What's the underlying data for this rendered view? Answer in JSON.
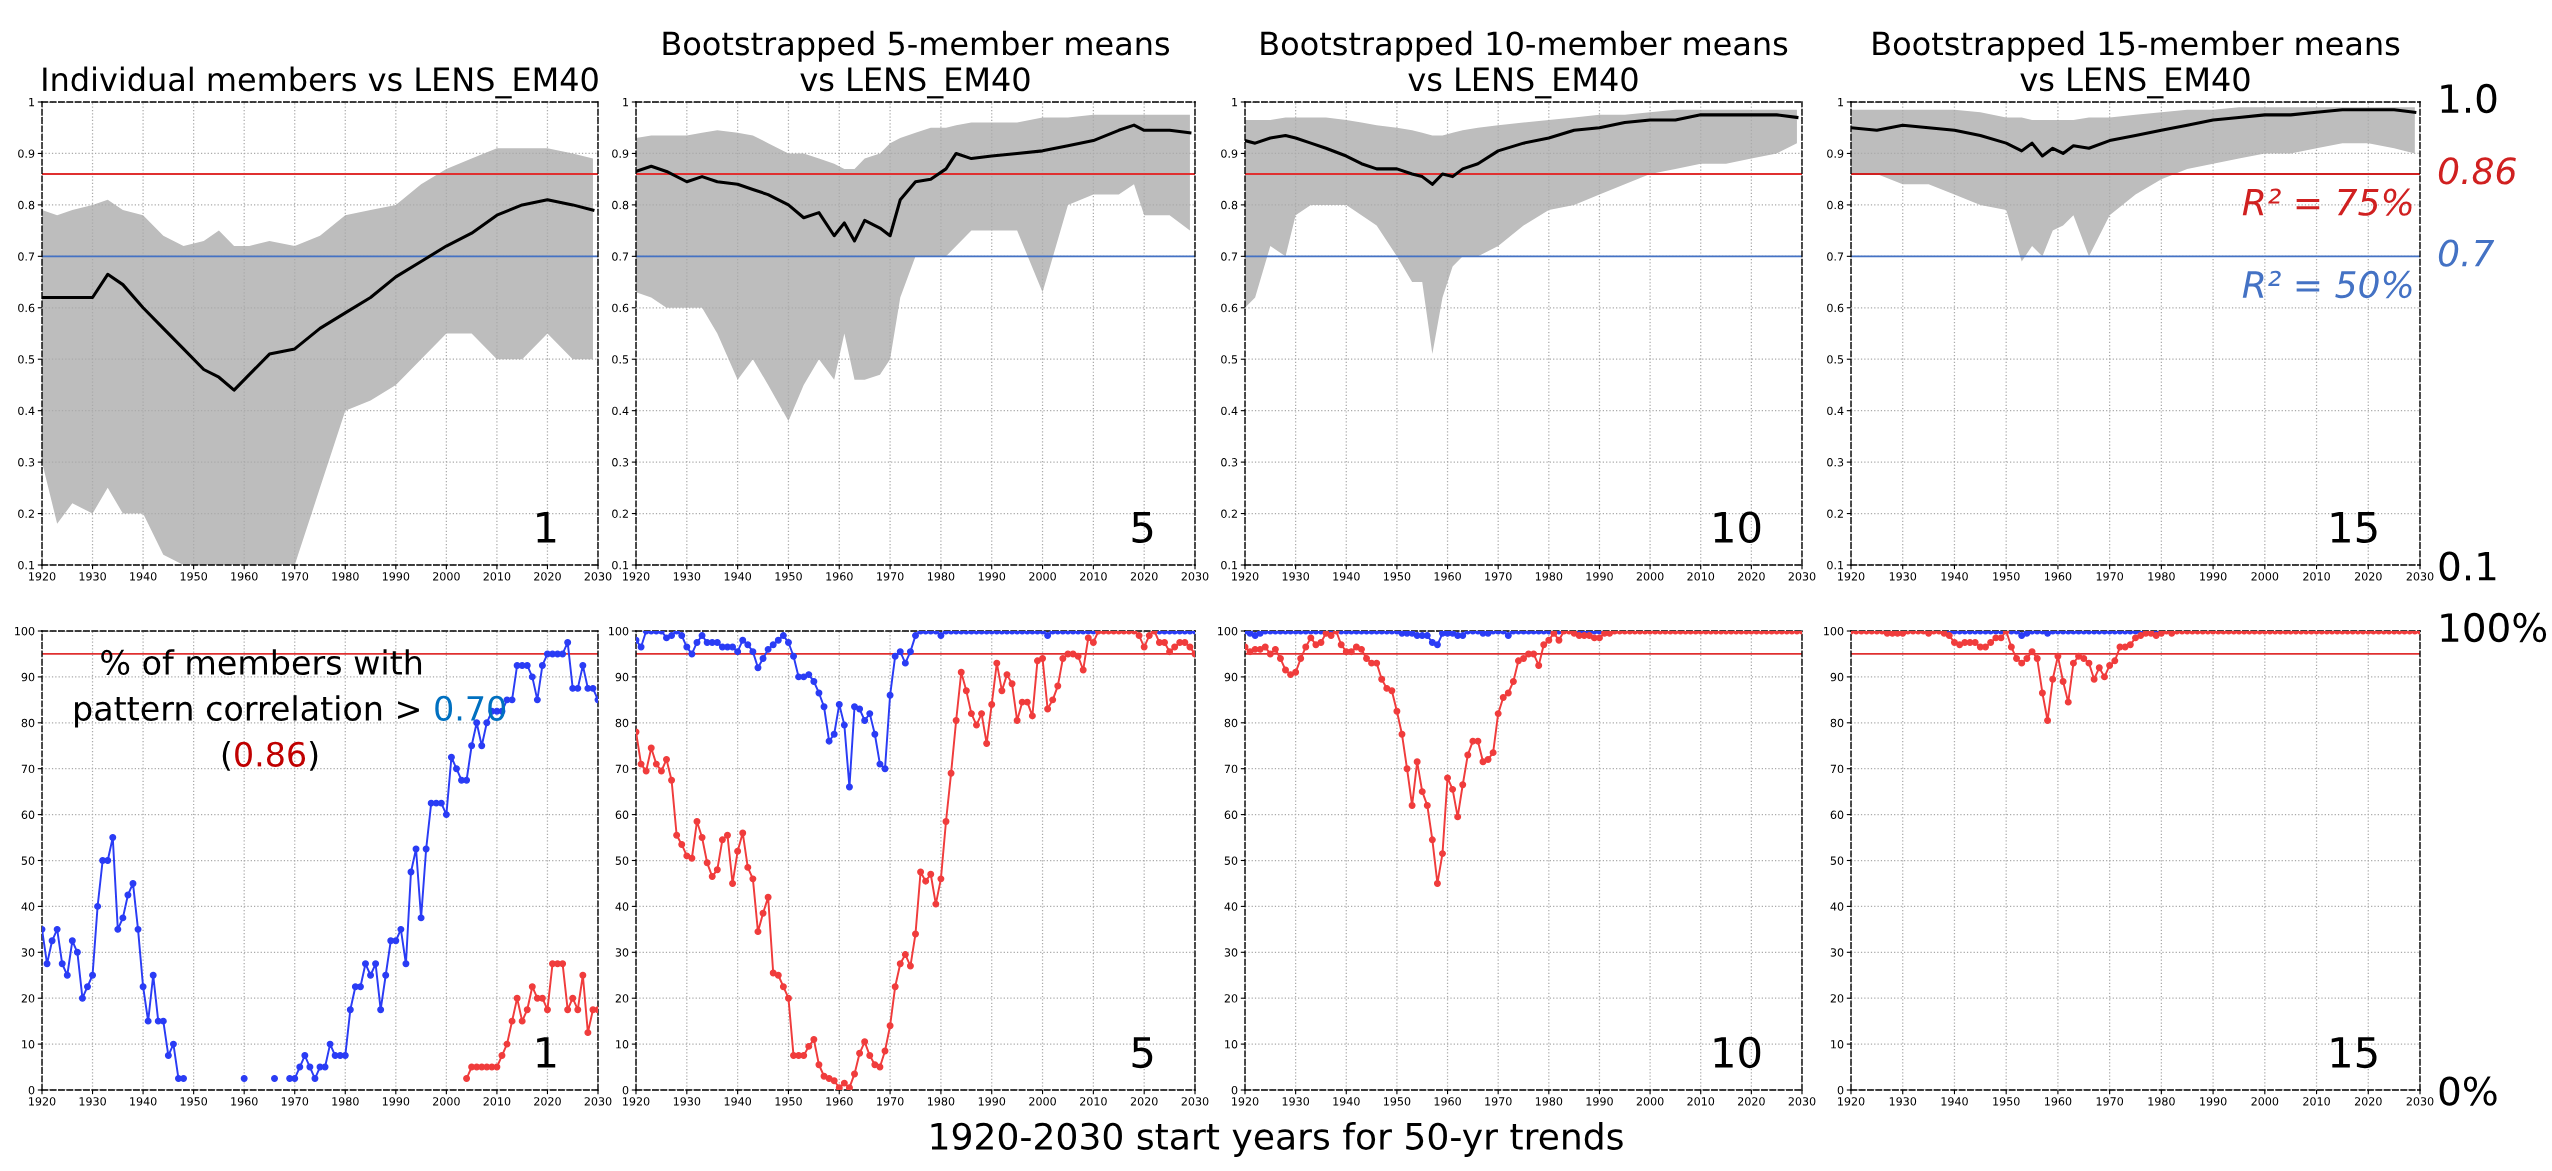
{
  "chart_data": [
    {
      "type": "line",
      "title": "Individual members vs LENS_EM40",
      "xlim": [
        1920,
        2030
      ],
      "xticks": [
        1920,
        1930,
        1940,
        1950,
        1960,
        1970,
        1980,
        1990,
        2000,
        2010,
        2020,
        2030
      ],
      "ylim": [
        0.1,
        1
      ],
      "yticks": [
        0.1,
        0.2,
        0.3,
        0.4,
        0.5,
        0.6,
        0.7,
        0.8,
        0.9,
        1
      ],
      "grid": true,
      "ref_lines": [
        {
          "axis": "y",
          "value": 0.86,
          "color": "#e03030"
        },
        {
          "axis": "y",
          "value": 0.7,
          "color": "#4472c4"
        }
      ],
      "series": [
        {
          "color": "#000000",
          "x": [
            1920,
            1923,
            1926,
            1930,
            1933,
            1936,
            1940,
            1944,
            1948,
            1952,
            1955,
            1958,
            1961,
            1965,
            1970,
            1975,
            1980,
            1985,
            1990,
            1995,
            2000,
            2005,
            2010,
            2015,
            2020,
            2025,
            2029
          ],
          "values": [
            0.62,
            0.62,
            0.62,
            0.62,
            0.665,
            0.645,
            0.6,
            0.56,
            0.52,
            0.48,
            0.465,
            0.44,
            0.47,
            0.51,
            0.52,
            0.56,
            0.59,
            0.62,
            0.66,
            0.69,
            0.72,
            0.745,
            0.78,
            0.8,
            0.81,
            0.8,
            0.79
          ],
          "lower": [
            0.3,
            0.18,
            0.22,
            0.2,
            0.25,
            0.2,
            0.2,
            0.12,
            0.1,
            0.1,
            0.1,
            0.1,
            0.1,
            0.1,
            0.1,
            0.25,
            0.4,
            0.42,
            0.45,
            0.5,
            0.55,
            0.55,
            0.5,
            0.5,
            0.55,
            0.5,
            0.5
          ],
          "upper": [
            0.79,
            0.78,
            0.79,
            0.8,
            0.81,
            0.79,
            0.78,
            0.74,
            0.72,
            0.73,
            0.75,
            0.72,
            0.72,
            0.73,
            0.72,
            0.74,
            0.78,
            0.79,
            0.8,
            0.84,
            0.87,
            0.89,
            0.91,
            0.91,
            0.91,
            0.9,
            0.89
          ]
        }
      ],
      "annotations": [
        "1"
      ]
    },
    {
      "type": "line",
      "title": "Bootstrapped 5-member means\nvs LENS_EM40",
      "xlim": [
        1920,
        2030
      ],
      "xticks": [
        1920,
        1930,
        1940,
        1950,
        1960,
        1970,
        1980,
        1990,
        2000,
        2010,
        2020,
        2030
      ],
      "ylim": [
        0.1,
        1
      ],
      "yticks": [
        0.1,
        0.2,
        0.3,
        0.4,
        0.5,
        0.6,
        0.7,
        0.8,
        0.9,
        1
      ],
      "grid": true,
      "ref_lines": [
        {
          "axis": "y",
          "value": 0.86,
          "color": "#e03030"
        },
        {
          "axis": "y",
          "value": 0.7,
          "color": "#4472c4"
        }
      ],
      "series": [
        {
          "color": "#000000",
          "x": [
            1920,
            1923,
            1926,
            1930,
            1933,
            1936,
            1940,
            1943,
            1946,
            1950,
            1953,
            1956,
            1959,
            1961,
            1963,
            1965,
            1968,
            1970,
            1972,
            1975,
            1978,
            1981,
            1983,
            1986,
            1990,
            1995,
            2000,
            2005,
            2010,
            2015,
            2018,
            2020,
            2025,
            2029
          ],
          "values": [
            0.865,
            0.875,
            0.865,
            0.845,
            0.855,
            0.845,
            0.84,
            0.83,
            0.82,
            0.8,
            0.775,
            0.785,
            0.74,
            0.765,
            0.73,
            0.77,
            0.755,
            0.74,
            0.81,
            0.845,
            0.85,
            0.87,
            0.9,
            0.89,
            0.895,
            0.9,
            0.905,
            0.915,
            0.925,
            0.945,
            0.955,
            0.945,
            0.945,
            0.94
          ],
          "lower": [
            0.63,
            0.62,
            0.6,
            0.6,
            0.6,
            0.55,
            0.46,
            0.5,
            0.45,
            0.38,
            0.45,
            0.5,
            0.46,
            0.55,
            0.46,
            0.46,
            0.47,
            0.5,
            0.62,
            0.7,
            0.7,
            0.7,
            0.72,
            0.75,
            0.75,
            0.75,
            0.63,
            0.8,
            0.82,
            0.82,
            0.84,
            0.78,
            0.78,
            0.75
          ],
          "upper": [
            0.93,
            0.935,
            0.935,
            0.935,
            0.94,
            0.945,
            0.94,
            0.935,
            0.92,
            0.9,
            0.9,
            0.89,
            0.88,
            0.87,
            0.87,
            0.89,
            0.9,
            0.92,
            0.93,
            0.94,
            0.95,
            0.95,
            0.955,
            0.96,
            0.96,
            0.96,
            0.97,
            0.97,
            0.975,
            0.975,
            0.975,
            0.975,
            0.975,
            0.975
          ]
        }
      ],
      "annotations": [
        "5"
      ]
    },
    {
      "type": "line",
      "title": "Bootstrapped 10-member means\nvs LENS_EM40",
      "xlim": [
        1920,
        2030
      ],
      "xticks": [
        1920,
        1930,
        1940,
        1950,
        1960,
        1970,
        1980,
        1990,
        2000,
        2010,
        2020,
        2030
      ],
      "ylim": [
        0.1,
        1
      ],
      "yticks": [
        0.1,
        0.2,
        0.3,
        0.4,
        0.5,
        0.6,
        0.7,
        0.8,
        0.9,
        1
      ],
      "grid": true,
      "ref_lines": [
        {
          "axis": "y",
          "value": 0.86,
          "color": "#e03030"
        },
        {
          "axis": "y",
          "value": 0.7,
          "color": "#4472c4"
        }
      ],
      "series": [
        {
          "color": "#000000",
          "x": [
            1920,
            1922,
            1925,
            1928,
            1930,
            1933,
            1936,
            1940,
            1943,
            1946,
            1950,
            1953,
            1955,
            1957,
            1959,
            1961,
            1963,
            1966,
            1970,
            1975,
            1980,
            1985,
            1990,
            1995,
            2000,
            2005,
            2010,
            2015,
            2020,
            2025,
            2029
          ],
          "values": [
            0.925,
            0.92,
            0.93,
            0.935,
            0.93,
            0.92,
            0.91,
            0.895,
            0.88,
            0.87,
            0.87,
            0.86,
            0.855,
            0.84,
            0.86,
            0.855,
            0.87,
            0.88,
            0.905,
            0.92,
            0.93,
            0.945,
            0.95,
            0.96,
            0.965,
            0.965,
            0.975,
            0.975,
            0.975,
            0.975,
            0.97
          ],
          "lower": [
            0.6,
            0.62,
            0.72,
            0.7,
            0.78,
            0.8,
            0.8,
            0.8,
            0.78,
            0.76,
            0.7,
            0.65,
            0.65,
            0.51,
            0.62,
            0.68,
            0.7,
            0.7,
            0.72,
            0.76,
            0.79,
            0.8,
            0.82,
            0.84,
            0.86,
            0.87,
            0.88,
            0.88,
            0.89,
            0.9,
            0.92
          ],
          "upper": [
            0.965,
            0.965,
            0.965,
            0.97,
            0.97,
            0.97,
            0.97,
            0.965,
            0.96,
            0.955,
            0.95,
            0.945,
            0.94,
            0.935,
            0.935,
            0.94,
            0.945,
            0.95,
            0.955,
            0.96,
            0.965,
            0.97,
            0.975,
            0.975,
            0.98,
            0.985,
            0.985,
            0.985,
            0.985,
            0.985,
            0.985
          ]
        }
      ],
      "annotations": [
        "10"
      ]
    },
    {
      "type": "line",
      "title": "Bootstrapped 15-member means\nvs LENS_EM40",
      "xlim": [
        1920,
        2030
      ],
      "xticks": [
        1920,
        1930,
        1940,
        1950,
        1960,
        1970,
        1980,
        1990,
        2000,
        2010,
        2020,
        2030
      ],
      "ylim": [
        0.1,
        1
      ],
      "yticks": [
        0.1,
        0.2,
        0.3,
        0.4,
        0.5,
        0.6,
        0.7,
        0.8,
        0.9,
        1
      ],
      "grid": true,
      "ref_lines": [
        {
          "axis": "y",
          "value": 0.86,
          "color": "#d02020",
          "label": "0.86"
        },
        {
          "axis": "y",
          "value": 0.7,
          "color": "#4472c4",
          "label": "0.7"
        }
      ],
      "series": [
        {
          "color": "#000000",
          "x": [
            1920,
            1925,
            1930,
            1935,
            1940,
            1945,
            1950,
            1953,
            1955,
            1957,
            1959,
            1961,
            1963,
            1966,
            1970,
            1975,
            1980,
            1985,
            1990,
            1995,
            2000,
            2005,
            2010,
            2015,
            2020,
            2025,
            2029
          ],
          "values": [
            0.95,
            0.945,
            0.955,
            0.95,
            0.945,
            0.935,
            0.92,
            0.905,
            0.92,
            0.895,
            0.91,
            0.9,
            0.915,
            0.91,
            0.925,
            0.935,
            0.945,
            0.955,
            0.965,
            0.97,
            0.975,
            0.975,
            0.98,
            0.985,
            0.985,
            0.985,
            0.98
          ],
          "lower": [
            0.86,
            0.86,
            0.84,
            0.84,
            0.82,
            0.8,
            0.79,
            0.69,
            0.72,
            0.7,
            0.75,
            0.76,
            0.78,
            0.7,
            0.78,
            0.82,
            0.85,
            0.87,
            0.88,
            0.89,
            0.9,
            0.9,
            0.91,
            0.92,
            0.92,
            0.91,
            0.9
          ],
          "upper": [
            0.985,
            0.985,
            0.985,
            0.985,
            0.985,
            0.98,
            0.97,
            0.97,
            0.965,
            0.965,
            0.965,
            0.965,
            0.965,
            0.97,
            0.97,
            0.975,
            0.98,
            0.985,
            0.985,
            0.99,
            0.99,
            0.99,
            0.99,
            0.99,
            0.99,
            0.99,
            0.99
          ]
        }
      ],
      "annotations": [
        "15",
        "1.0",
        "0.1",
        {
          "text": "R² = 75%",
          "x": 2029,
          "y": 0.86
        },
        {
          "text": "R² = 50%",
          "x": 2029,
          "y": 0.7
        }
      ]
    },
    {
      "type": "line",
      "marker": "circle",
      "xlim": [
        1920,
        2030
      ],
      "xticks": [
        1920,
        1930,
        1940,
        1950,
        1960,
        1970,
        1980,
        1990,
        2000,
        2010,
        2020,
        2030
      ],
      "ylim": [
        0,
        100
      ],
      "yticks": [
        0,
        10,
        20,
        30,
        40,
        50,
        60,
        70,
        80,
        90,
        100
      ],
      "grid": true,
      "ref_lines": [
        {
          "axis": "y",
          "value": 95,
          "color": "#e03030"
        }
      ],
      "x": [
        1920,
        1921,
        1922,
        1923,
        1924,
        1925,
        1926,
        1927,
        1928,
        1929,
        1930,
        1931,
        1932,
        1933,
        1934,
        1935,
        1936,
        1937,
        1938,
        1939,
        1940,
        1941,
        1942,
        1943,
        1944,
        1945,
        1946,
        1947,
        1948,
        1949,
        1950,
        1951,
        1952,
        1953,
        1954,
        1955,
        1956,
        1957,
        1958,
        1959,
        1960,
        1961,
        1962,
        1963,
        1964,
        1965,
        1966,
        1967,
        1968,
        1969,
        1970,
        1971,
        1972,
        1973,
        1974,
        1975,
        1976,
        1977,
        1978,
        1979,
        1980,
        1981,
        1982,
        1983,
        1984,
        1985,
        1986,
        1987,
        1988,
        1989,
        1990,
        1991,
        1992,
        1993,
        1994,
        1995,
        1996,
        1997,
        1998,
        1999,
        2000,
        2001,
        2002,
        2003,
        2004,
        2005,
        2006,
        2007,
        2008,
        2009,
        2010,
        2011,
        2012,
        2013,
        2014,
        2015,
        2016,
        2017,
        2018,
        2019,
        2020,
        2021,
        2022,
        2023,
        2024,
        2025,
        2026,
        2027,
        2028,
        2029,
        2030
      ],
      "series": [
        {
          "color": "#2a3cf5",
          "values": [
            35,
            27.5,
            32.5,
            35,
            27.5,
            25,
            32.5,
            30,
            20,
            22.5,
            25,
            40,
            50,
            50,
            55,
            35,
            37.5,
            42.5,
            45,
            35,
            22.5,
            15,
            25,
            15,
            15,
            7.5,
            10,
            2.5,
            2.5,
            null,
            null,
            null,
            null,
            null,
            null,
            null,
            null,
            null,
            null,
            null,
            2.5,
            null,
            null,
            null,
            null,
            null,
            2.5,
            null,
            null,
            2.5,
            2.5,
            5,
            7.5,
            5,
            2.5,
            5,
            5,
            10,
            7.5,
            7.5,
            7.5,
            17.5,
            22.5,
            22.5,
            27.5,
            25,
            27.5,
            17.5,
            25,
            32.5,
            32.5,
            35,
            27.5,
            47.5,
            52.5,
            37.5,
            52.5,
            62.5,
            62.5,
            62.5,
            60,
            72.5,
            70,
            67.5,
            67.5,
            75,
            80,
            75,
            80,
            82.5,
            82.5,
            82.5,
            85,
            85,
            92.5,
            92.5,
            92.5,
            90,
            85,
            92.5,
            95,
            95,
            95,
            95,
            97.5,
            87.5,
            87.5,
            92.5,
            87.5,
            87.5,
            85
          ]
        },
        {
          "color": "#f03c3c",
          "values": [
            null,
            null,
            null,
            null,
            null,
            null,
            null,
            null,
            null,
            null,
            null,
            null,
            null,
            null,
            null,
            null,
            null,
            null,
            null,
            null,
            null,
            null,
            null,
            null,
            null,
            null,
            null,
            null,
            null,
            null,
            null,
            null,
            null,
            null,
            null,
            null,
            null,
            null,
            null,
            null,
            null,
            null,
            null,
            null,
            null,
            null,
            null,
            null,
            null,
            null,
            null,
            null,
            null,
            null,
            null,
            null,
            null,
            null,
            null,
            null,
            null,
            null,
            null,
            null,
            null,
            null,
            null,
            null,
            null,
            null,
            null,
            null,
            null,
            null,
            null,
            null,
            null,
            null,
            null,
            null,
            null,
            null,
            null,
            null,
            2.5,
            5,
            5,
            5,
            5,
            5,
            5,
            7.5,
            10,
            15,
            20,
            15,
            17.5,
            22.5,
            20,
            20,
            17.5,
            27.5,
            27.5,
            27.5,
            17.5,
            20,
            17.5,
            25,
            12.5,
            17.5,
            17.5
          ]
        }
      ],
      "annotations": [
        "% of members with",
        "pattern correlation > ",
        "0.70",
        "(",
        "0.86",
        ")",
        "1"
      ]
    },
    {
      "type": "line",
      "marker": "circle",
      "xlim": [
        1920,
        2030
      ],
      "xticks": [
        1920,
        1930,
        1940,
        1950,
        1960,
        1970,
        1980,
        1990,
        2000,
        2010,
        2020,
        2030
      ],
      "ylim": [
        0,
        100
      ],
      "yticks": [
        0,
        10,
        20,
        30,
        40,
        50,
        60,
        70,
        80,
        90,
        100
      ],
      "grid": true,
      "ref_lines": [
        {
          "axis": "y",
          "value": 95,
          "color": "#e03030"
        }
      ],
      "x": [
        1920,
        1921,
        1922,
        1923,
        1924,
        1925,
        1926,
        1927,
        1928,
        1929,
        1930,
        1931,
        1932,
        1933,
        1934,
        1935,
        1936,
        1937,
        1938,
        1939,
        1940,
        1941,
        1942,
        1943,
        1944,
        1945,
        1946,
        1947,
        1948,
        1949,
        1950,
        1951,
        1952,
        1953,
        1954,
        1955,
        1956,
        1957,
        1958,
        1959,
        1960,
        1961,
        1962,
        1963,
        1964,
        1965,
        1966,
        1967,
        1968,
        1969,
        1970,
        1971,
        1972,
        1973,
        1974,
        1975,
        1976,
        1977,
        1978,
        1979,
        1980,
        1981,
        1982,
        1983,
        1984,
        1985,
        1986,
        1987,
        1988,
        1989,
        1990,
        1991,
        1992,
        1993,
        1994,
        1995,
        1996,
        1997,
        1998,
        1999,
        2000,
        2001,
        2002,
        2003,
        2004,
        2005,
        2006,
        2007,
        2008,
        2009,
        2010,
        2011,
        2012,
        2013,
        2014,
        2015,
        2016,
        2017,
        2018,
        2019,
        2020,
        2021,
        2022,
        2023,
        2024,
        2025,
        2026,
        2027,
        2028,
        2029,
        2030
      ],
      "series": [
        {
          "color": "#2a3cf5",
          "values": [
            98,
            96.5,
            100,
            100,
            100,
            100,
            98.5,
            99,
            100,
            99,
            96.5,
            95,
            97.5,
            99,
            97.5,
            97.5,
            97.5,
            96.5,
            96.5,
            96.5,
            95.5,
            98,
            97,
            95.5,
            92,
            94,
            96,
            97,
            98,
            99,
            97.5,
            94.5,
            90,
            90,
            90.5,
            89,
            86.5,
            83.5,
            76,
            77.5,
            84,
            79.5,
            66,
            83.5,
            83,
            80.5,
            82,
            77.5,
            71,
            70,
            86,
            94.5,
            95.5,
            93,
            95.5,
            99,
            100,
            100,
            100,
            100,
            99,
            100,
            100,
            100,
            100,
            100,
            100,
            100,
            100,
            100,
            100,
            100,
            100,
            100,
            100,
            100,
            100,
            100,
            100,
            100,
            100,
            99,
            100,
            100,
            100,
            100,
            100,
            100,
            100,
            100,
            100,
            null,
            null,
            null,
            null,
            null,
            null,
            null,
            null,
            null,
            null,
            null,
            null,
            100,
            100,
            100,
            100,
            100,
            100,
            100,
            100
          ]
        },
        {
          "color": "#f03c3c",
          "values": [
            78,
            71,
            69.5,
            74.5,
            71,
            69.5,
            72,
            67.5,
            55.5,
            53.5,
            51,
            50.5,
            58.5,
            55,
            49.5,
            46.5,
            48,
            54.5,
            55.5,
            45,
            52,
            56,
            48.5,
            46,
            34.5,
            38.5,
            42,
            25.5,
            25,
            22.5,
            20,
            7.5,
            7.5,
            7.5,
            9.5,
            11,
            5.5,
            3,
            2.5,
            2,
            0.5,
            1.5,
            0.5,
            3.5,
            8,
            10.5,
            7.5,
            5.5,
            5,
            8.5,
            14,
            22.5,
            27.5,
            29.5,
            27,
            34,
            47.5,
            45.5,
            47,
            40.5,
            46,
            58.5,
            69,
            80.5,
            91,
            87,
            82,
            79.5,
            82,
            75.5,
            84,
            93,
            87,
            90.5,
            88.5,
            80.5,
            84.5,
            84.5,
            81.5,
            93.5,
            94,
            83,
            85,
            88,
            94,
            95,
            95,
            94.5,
            91.5,
            98.5,
            97.5,
            100,
            100,
            100,
            100,
            100,
            100,
            100,
            100,
            99,
            96.5,
            99,
            100,
            97.5,
            97.5,
            95.5,
            96.5,
            97.5,
            97.5,
            96.5,
            95
          ]
        }
      ],
      "annotations": [
        "5"
      ]
    },
    {
      "type": "line",
      "marker": "circle",
      "xlim": [
        1920,
        2030
      ],
      "xticks": [
        1920,
        1930,
        1940,
        1950,
        1960,
        1970,
        1980,
        1990,
        2000,
        2010,
        2020,
        2030
      ],
      "ylim": [
        0,
        100
      ],
      "yticks": [
        0,
        10,
        20,
        30,
        40,
        50,
        60,
        70,
        80,
        90,
        100
      ],
      "grid": true,
      "ref_lines": [
        {
          "axis": "y",
          "value": 95,
          "color": "#e03030"
        }
      ],
      "x": [
        1920,
        1921,
        1922,
        1923,
        1924,
        1925,
        1926,
        1927,
        1928,
        1929,
        1930,
        1931,
        1932,
        1933,
        1934,
        1935,
        1936,
        1937,
        1938,
        1939,
        1940,
        1941,
        1942,
        1943,
        1944,
        1945,
        1946,
        1947,
        1948,
        1949,
        1950,
        1951,
        1952,
        1953,
        1954,
        1955,
        1956,
        1957,
        1958,
        1959,
        1960,
        1961,
        1962,
        1963,
        1964,
        1965,
        1966,
        1967,
        1968,
        1969,
        1970,
        1971,
        1972,
        1973,
        1974,
        1975,
        1976,
        1977,
        1978,
        1979,
        1980,
        1981,
        1982,
        1983,
        1984,
        1985,
        1986,
        1987,
        1988,
        1989,
        1990,
        1991,
        1992,
        1993,
        1994,
        1995,
        1996,
        1997,
        1998,
        1999,
        2000,
        2001,
        2002,
        2003,
        2004,
        2005,
        2006,
        2007,
        2008,
        2009,
        2010,
        2011,
        2012,
        2013,
        2014,
        2015,
        2016,
        2017,
        2018,
        2019,
        2020,
        2021,
        2022,
        2023,
        2024,
        2025,
        2026,
        2027,
        2028,
        2029,
        2030
      ],
      "series": [
        {
          "color": "#2a3cf5",
          "values": [
            100,
            99.5,
            99,
            99.5,
            100,
            100,
            100,
            100,
            100,
            100,
            100,
            100,
            100,
            100,
            100,
            100,
            100,
            100,
            null,
            100,
            100,
            100,
            100,
            100,
            100,
            100,
            100,
            100,
            100,
            100,
            100,
            99.5,
            99.5,
            99.5,
            99,
            99,
            99,
            97.5,
            97,
            99.5,
            99.5,
            99.5,
            99,
            99,
            100,
            100,
            100,
            99.5,
            99.5,
            100,
            100,
            100,
            99,
            100,
            100,
            100,
            100,
            100,
            100,
            100,
            100,
            100,
            100,
            null,
            null,
            100,
            100,
            100,
            100,
            100,
            100,
            100,
            100,
            null,
            null,
            null,
            null,
            null,
            null,
            null,
            null,
            null,
            null,
            null,
            null,
            null,
            null,
            null,
            null,
            null,
            null,
            null,
            null,
            null,
            null,
            null,
            null,
            null,
            null,
            null,
            null,
            null,
            null,
            null,
            null,
            null,
            null,
            null,
            null,
            null,
            null
          ]
        },
        {
          "color": "#f03c3c",
          "values": [
            96.5,
            95.5,
            96,
            96,
            96.5,
            95,
            96,
            94,
            91.5,
            90.5,
            91,
            94,
            96.5,
            98.5,
            97,
            97.5,
            99.5,
            99,
            100,
            97,
            95.5,
            95.5,
            96.5,
            96,
            94,
            93,
            93,
            89.5,
            87.5,
            87,
            82.5,
            77.5,
            70,
            62,
            71.5,
            65,
            62,
            54.5,
            45,
            51.5,
            68,
            65.5,
            59.5,
            66.5,
            73,
            76,
            76,
            71.5,
            72,
            73.5,
            82,
            85.5,
            86.5,
            89,
            93.5,
            94,
            95,
            95,
            92.5,
            97,
            98,
            99.5,
            98,
            100,
            100,
            99.5,
            99,
            99,
            99,
            98.5,
            98.5,
            99.5,
            99.5,
            100,
            100,
            100,
            100,
            100,
            100,
            100,
            100,
            100,
            100,
            100,
            100,
            100,
            100,
            100,
            100,
            100,
            100,
            100,
            100,
            100,
            100,
            100,
            100,
            100,
            100,
            100,
            100,
            100,
            100,
            100,
            100,
            100,
            100,
            100,
            100,
            100,
            100
          ]
        }
      ],
      "annotations": [
        "10"
      ]
    },
    {
      "type": "line",
      "marker": "circle",
      "xlim": [
        1920,
        2030
      ],
      "xticks": [
        1920,
        1930,
        1940,
        1950,
        1960,
        1970,
        1980,
        1990,
        2000,
        2010,
        2020,
        2030
      ],
      "ylim": [
        0,
        100
      ],
      "yticks": [
        0,
        10,
        20,
        30,
        40,
        50,
        60,
        70,
        80,
        90,
        100
      ],
      "grid": true,
      "ref_lines": [
        {
          "axis": "y",
          "value": 95,
          "color": "#e03030"
        }
      ],
      "x": [
        1920,
        1921,
        1922,
        1923,
        1924,
        1925,
        1926,
        1927,
        1928,
        1929,
        1930,
        1931,
        1932,
        1933,
        1934,
        1935,
        1936,
        1937,
        1938,
        1939,
        1940,
        1941,
        1942,
        1943,
        1944,
        1945,
        1946,
        1947,
        1948,
        1949,
        1950,
        1951,
        1952,
        1953,
        1954,
        1955,
        1956,
        1957,
        1958,
        1959,
        1960,
        1961,
        1962,
        1963,
        1964,
        1965,
        1966,
        1967,
        1968,
        1969,
        1970,
        1971,
        1972,
        1973,
        1974,
        1975,
        1976,
        1977,
        1978,
        1979,
        1980,
        1981,
        1982,
        1983,
        1984,
        1985,
        1986,
        1987,
        1988,
        1989,
        1990,
        1991,
        1992,
        1993,
        1994,
        1995,
        1996,
        1997,
        1998,
        1999,
        2000,
        2001,
        2002,
        2003,
        2004,
        2005,
        2006,
        2007,
        2008,
        2009,
        2010,
        2011,
        2012,
        2013,
        2014,
        2015,
        2016,
        2017,
        2018,
        2019,
        2020,
        2021,
        2022,
        2023,
        2024,
        2025,
        2026,
        2027,
        2028,
        2029,
        2030
      ],
      "series": [
        {
          "color": "#2a3cf5",
          "values": [
            null,
            null,
            null,
            null,
            null,
            null,
            null,
            null,
            null,
            null,
            null,
            null,
            null,
            null,
            null,
            null,
            null,
            null,
            100,
            100,
            100,
            100,
            100,
            100,
            100,
            100,
            100,
            100,
            100,
            100,
            null,
            100,
            100,
            99,
            99.5,
            100,
            100,
            100,
            99.5,
            100,
            100,
            100,
            100,
            100,
            100,
            100,
            100,
            100,
            100,
            100,
            100,
            100,
            100,
            100,
            100,
            100,
            100,
            100,
            100,
            100,
            100,
            null,
            null,
            null,
            null,
            null,
            null,
            null,
            null,
            null,
            null,
            null,
            null,
            null,
            null,
            null,
            null,
            null,
            null,
            null,
            null,
            null,
            null,
            null,
            null,
            null,
            null,
            null,
            null,
            null,
            null,
            null,
            null,
            null,
            null,
            null,
            null,
            null,
            null,
            null,
            null,
            null,
            null,
            null,
            null,
            null,
            null,
            null,
            null,
            null,
            null
          ]
        },
        {
          "color": "#f03c3c",
          "values": [
            100,
            100,
            100,
            100,
            100,
            100,
            100,
            99.5,
            99.5,
            99.5,
            99.5,
            100,
            100,
            100,
            100,
            99.5,
            100,
            100,
            99.5,
            99,
            97.5,
            97,
            97.5,
            97.5,
            97.5,
            96.5,
            96.5,
            97.5,
            98.5,
            98.5,
            100,
            96.5,
            94,
            93,
            94,
            95.5,
            94,
            86.5,
            80.5,
            89.5,
            94.5,
            89,
            84.5,
            93,
            94.5,
            94,
            93,
            89.5,
            92,
            90,
            92.5,
            93.5,
            96.5,
            96.5,
            97,
            98.5,
            99,
            99.5,
            99.5,
            99,
            99.5,
            100,
            99.5,
            100,
            100,
            100,
            100,
            100,
            100,
            100,
            100,
            100,
            100,
            100,
            100,
            100,
            100,
            100,
            100,
            100,
            100,
            100,
            100,
            100,
            100,
            100,
            100,
            100,
            100,
            100,
            100,
            100,
            100,
            100,
            100,
            100,
            100,
            100,
            100,
            100,
            100,
            100,
            100,
            100,
            100,
            100,
            100,
            100,
            100,
            100,
            100
          ]
        }
      ],
      "annotations": [
        "15",
        "100%",
        "0%",
        "1920-2030 start years for 50-yr trends"
      ]
    }
  ]
}
